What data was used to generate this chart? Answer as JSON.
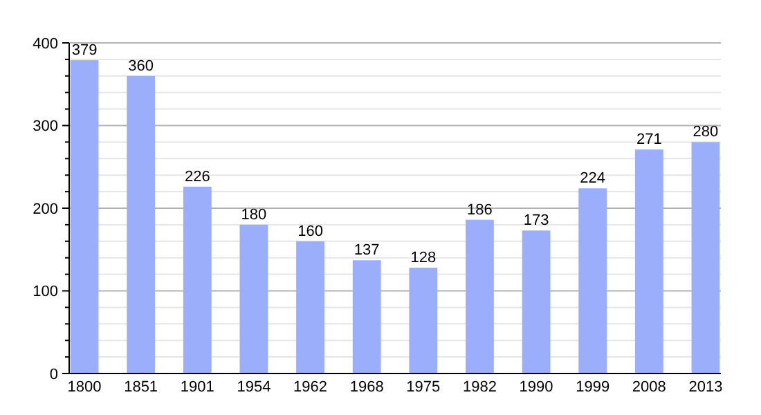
{
  "chart_data": {
    "type": "bar",
    "categories": [
      "1800",
      "1851",
      "1901",
      "1954",
      "1962",
      "1968",
      "1975",
      "1982",
      "1990",
      "1999",
      "2008",
      "2013"
    ],
    "values": [
      379,
      360,
      226,
      180,
      160,
      137,
      128,
      186,
      173,
      224,
      271,
      280
    ],
    "color": "#9aaefc",
    "ylim": [
      0,
      400
    ],
    "yticks": [
      0,
      {
        "value": 20,
        "label": null
      },
      {
        "value": 40,
        "label": null
      },
      {
        "value": 60,
        "label": null
      },
      {
        "value": 80,
        "label": null
      },
      100,
      {
        "value": 120,
        "label": null
      },
      {
        "value": 140,
        "label": null
      },
      {
        "value": 160,
        "label": null
      },
      {
        "value": 180,
        "label": null
      },
      200,
      {
        "value": 220,
        "label": null
      },
      {
        "value": 240,
        "label": null
      },
      {
        "value": 260,
        "label": null
      },
      {
        "value": 280,
        "label": null
      },
      300,
      {
        "value": 320,
        "label": null
      },
      {
        "value": 340,
        "label": null
      },
      {
        "value": 360,
        "label": null
      },
      {
        "value": 380,
        "label": null
      },
      400
    ],
    "grid": "y",
    "data_labels": true
  }
}
